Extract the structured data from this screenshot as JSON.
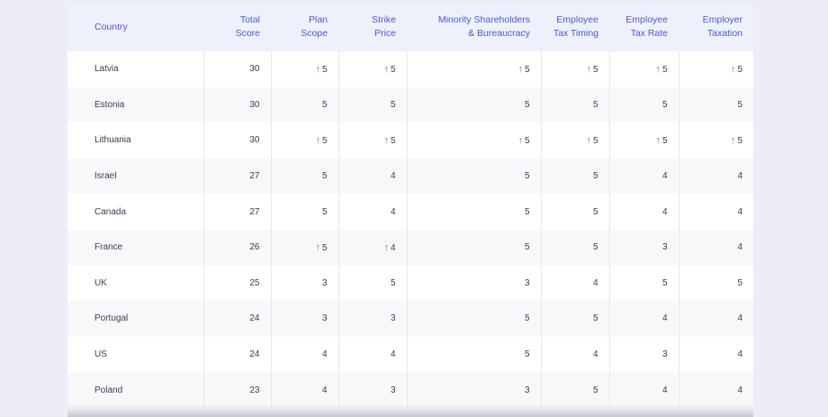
{
  "table": {
    "headers": [
      "Country",
      "Total Score",
      "Plan Scope",
      "Strike Price",
      "Minority Shareholders\n& Bureaucracy",
      "Employee\nTax Timing",
      "Employee\nTax Rate",
      "Employer\nTaxation"
    ],
    "rows": [
      {
        "country": "Latvia",
        "total": "30",
        "plan_scope": "5",
        "strike_price": "5",
        "minority": "5",
        "tax_timing": "5",
        "tax_rate": "5",
        "employer_tax": "5",
        "up": [
          true,
          true,
          true,
          true,
          true,
          true
        ]
      },
      {
        "country": "Estonia",
        "total": "30",
        "plan_scope": "5",
        "strike_price": "5",
        "minority": "5",
        "tax_timing": "5",
        "tax_rate": "5",
        "employer_tax": "5",
        "up": [
          false,
          false,
          false,
          false,
          false,
          false
        ]
      },
      {
        "country": "Lithuania",
        "total": "30",
        "plan_scope": "5",
        "strike_price": "5",
        "minority": "5",
        "tax_timing": "5",
        "tax_rate": "5",
        "employer_tax": "5",
        "up": [
          true,
          true,
          true,
          true,
          true,
          true
        ]
      },
      {
        "country": "Israel",
        "total": "27",
        "plan_scope": "5",
        "strike_price": "4",
        "minority": "5",
        "tax_timing": "5",
        "tax_rate": "4",
        "employer_tax": "4",
        "up": [
          false,
          false,
          false,
          false,
          false,
          false
        ]
      },
      {
        "country": "Canada",
        "total": "27",
        "plan_scope": "5",
        "strike_price": "4",
        "minority": "5",
        "tax_timing": "5",
        "tax_rate": "4",
        "employer_tax": "4",
        "up": [
          false,
          false,
          false,
          false,
          false,
          false
        ]
      },
      {
        "country": "France",
        "total": "26",
        "plan_scope": "5",
        "strike_price": "4",
        "minority": "5",
        "tax_timing": "5",
        "tax_rate": "3",
        "employer_tax": "4",
        "up": [
          true,
          true,
          false,
          false,
          false,
          false
        ]
      },
      {
        "country": "UK",
        "total": "25",
        "plan_scope": "3",
        "strike_price": "5",
        "minority": "3",
        "tax_timing": "4",
        "tax_rate": "5",
        "employer_tax": "5",
        "up": [
          false,
          false,
          false,
          false,
          false,
          false
        ]
      },
      {
        "country": "Portugal",
        "total": "24",
        "plan_scope": "3",
        "strike_price": "3",
        "minority": "5",
        "tax_timing": "5",
        "tax_rate": "4",
        "employer_tax": "4",
        "up": [
          false,
          false,
          false,
          false,
          false,
          false
        ]
      },
      {
        "country": "US",
        "total": "24",
        "plan_scope": "4",
        "strike_price": "4",
        "minority": "5",
        "tax_timing": "4",
        "tax_rate": "3",
        "employer_tax": "4",
        "up": [
          false,
          false,
          false,
          false,
          false,
          false
        ]
      },
      {
        "country": "Poland",
        "total": "23",
        "plan_scope": "4",
        "strike_price": "3",
        "minority": "3",
        "tax_timing": "5",
        "tax_rate": "4",
        "employer_tax": "4",
        "up": [
          false,
          false,
          false,
          false,
          false,
          false
        ]
      }
    ],
    "up_arrow": "↑"
  },
  "colors": {
    "header_text": "#4c5bc9",
    "header_bg": "#eef0fb",
    "up_arrow": "#37a860",
    "page_bg": "#ecedf8"
  },
  "icons": {
    "up": "arrow-up-icon"
  }
}
